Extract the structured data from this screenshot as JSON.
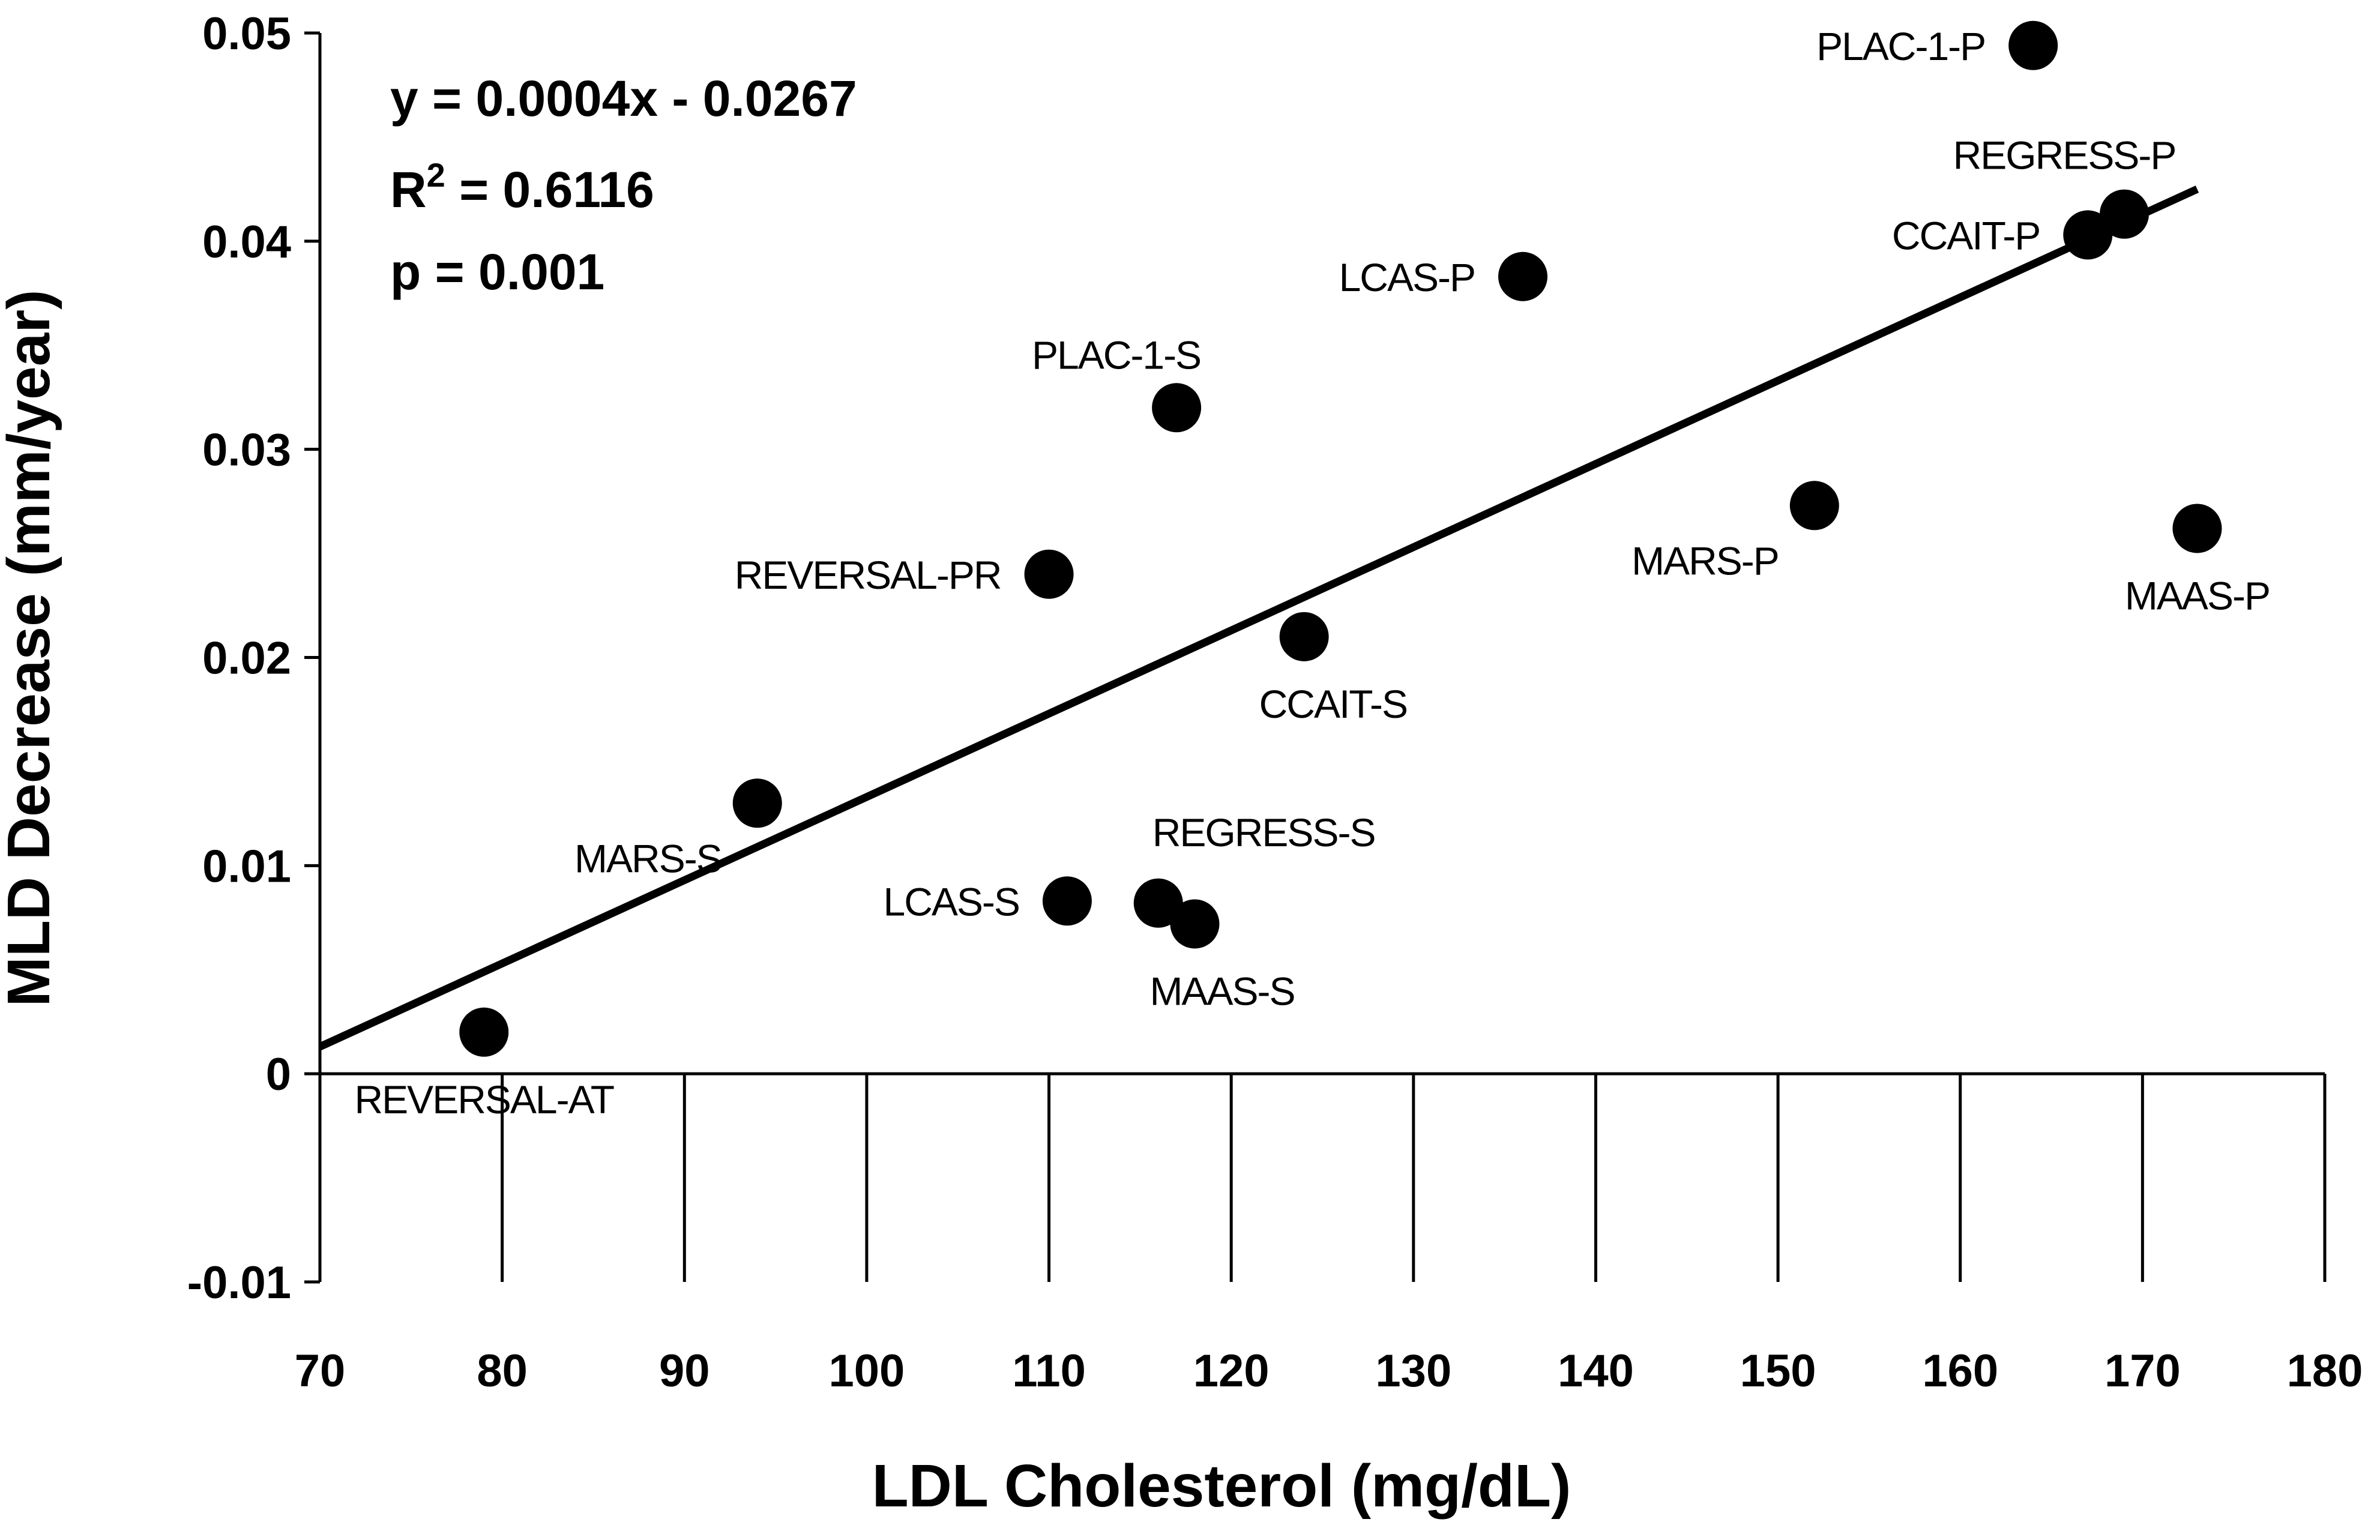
{
  "chart_data": {
    "type": "scatter",
    "title": "",
    "xlabel": "LDL Cholesterol (mg/dL)",
    "ylabel": "MLD Decrease (mm/year)",
    "xlim": [
      70,
      180
    ],
    "ylim": [
      -0.01,
      0.05
    ],
    "xticks": [
      70,
      80,
      90,
      100,
      110,
      120,
      130,
      140,
      150,
      160,
      170,
      180
    ],
    "yticks": [
      -0.01,
      0,
      0.01,
      0.02,
      0.03,
      0.04,
      0.05
    ],
    "ytick_labels": [
      "-0.01",
      "0",
      "0.01",
      "0.02",
      "0.03",
      "0.04",
      "0.05"
    ],
    "grid": false,
    "points": [
      {
        "label": "REVERSAL-AT",
        "x": 79,
        "y": 0.002,
        "label_pos": "below"
      },
      {
        "label": "MARS-S",
        "x": 94,
        "y": 0.013,
        "label_pos": "below-left"
      },
      {
        "label": "REVERSAL-PR",
        "x": 110,
        "y": 0.024,
        "label_pos": "left"
      },
      {
        "label": "LCAS-S",
        "x": 111,
        "y": 0.0083,
        "label_pos": "left"
      },
      {
        "label": "REGRESS-S",
        "x": 116,
        "y": 0.0082,
        "label_pos": "above-right"
      },
      {
        "label": "MAAS-S",
        "x": 118,
        "y": 0.0072,
        "label_pos": "below-right"
      },
      {
        "label": "PLAC-1-S",
        "x": 117,
        "y": 0.032,
        "label_pos": "above-left"
      },
      {
        "label": "CCAIT-S",
        "x": 124,
        "y": 0.021,
        "label_pos": "below-right"
      },
      {
        "label": "LCAS-P",
        "x": 136,
        "y": 0.0383,
        "label_pos": "left"
      },
      {
        "label": "MARS-P",
        "x": 152,
        "y": 0.0273,
        "label_pos": "below-left"
      },
      {
        "label": "PLAC-1-P",
        "x": 164,
        "y": 0.0494,
        "label_pos": "left"
      },
      {
        "label": "CCAIT-P",
        "x": 167,
        "y": 0.0403,
        "label_pos": "left"
      },
      {
        "label": "REGRESS-P",
        "x": 169,
        "y": 0.0413,
        "label_pos": "above"
      },
      {
        "label": "MAAS-P",
        "x": 173,
        "y": 0.0262,
        "label_pos": "below"
      }
    ],
    "trendline": {
      "slope": 0.0004,
      "intercept": -0.0267,
      "x_range": [
        70,
        173
      ]
    },
    "annotations": {
      "equation": "y = 0.0004x - 0.0267",
      "r2_prefix": "R",
      "r2_sup": "2",
      "r2_value": " = 0.6116",
      "p_value": "p = 0.001"
    }
  }
}
